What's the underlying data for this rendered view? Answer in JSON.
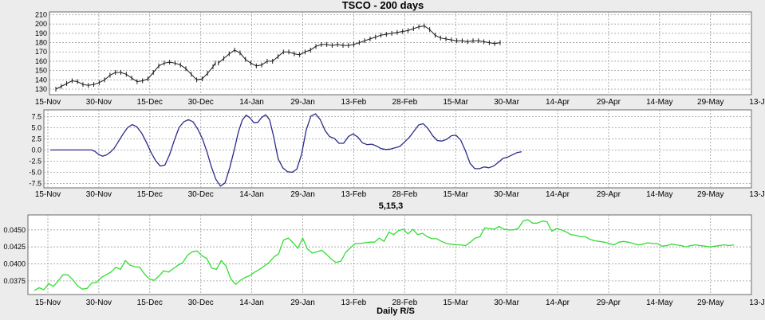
{
  "chart_data": [
    {
      "type": "line",
      "variant": "ohlc",
      "title": "TSCO - 200 days",
      "x_tick_labels": [
        "15-Nov",
        "30-Nov",
        "15-Dec",
        "30-Dec",
        "14-Jan",
        "29-Jan",
        "13-Feb",
        "28-Feb",
        "15-Mar",
        "30-Mar",
        "14-Apr",
        "29-Apr",
        "14-May",
        "29-May",
        "13-Jun"
      ],
      "y_ticks": [
        130,
        140,
        150,
        160,
        170,
        180,
        190,
        200,
        210
      ],
      "ylim": [
        124,
        213
      ],
      "grid": true,
      "series": [
        {
          "x": [
            0,
            7,
            14,
            21,
            28,
            35,
            42,
            49,
            56,
            63,
            70,
            77,
            84,
            91,
            98,
            105,
            112,
            119,
            126,
            133,
            140,
            147,
            154,
            161,
            168,
            175,
            182,
            189,
            196,
            203,
            206
          ],
          "values": [
            130,
            133,
            136,
            139,
            138,
            135,
            134,
            135,
            137,
            140,
            145,
            148,
            148,
            146,
            142,
            138,
            139,
            141,
            148,
            155,
            158,
            159,
            158,
            156,
            152,
            146,
            140,
            141,
            147,
            154,
            158
          ]
        },
        {
          "x": [
            210,
            217,
            224,
            231,
            238,
            245,
            252,
            259,
            266,
            273,
            280,
            287,
            294,
            301,
            308,
            315,
            322,
            329,
            336,
            343,
            350,
            357,
            364,
            371,
            378,
            385,
            392,
            399,
            406,
            413,
            420,
            427,
            434,
            441,
            448,
            455,
            462,
            469,
            476,
            483,
            490,
            497,
            504,
            511,
            518,
            525,
            532,
            539,
            546,
            553,
            560,
            567,
            574
          ],
          "values": [
            158,
            163,
            168,
            172,
            169,
            162,
            158,
            155,
            156,
            160,
            160,
            165,
            170,
            170,
            168,
            167,
            170,
            172,
            176,
            178,
            178,
            177,
            178,
            177,
            177,
            178,
            180,
            182,
            184,
            186,
            188,
            189,
            190,
            191,
            192,
            193,
            195,
            197,
            198,
            194,
            188,
            185,
            184,
            183,
            182,
            182,
            181,
            182,
            182,
            181,
            180,
            179,
            180
          ]
        }
      ]
    },
    {
      "type": "line",
      "title": "5,15,3",
      "x_tick_labels": [
        "15-Nov",
        "30-Nov",
        "15-Dec",
        "30-Dec",
        "14-Jan",
        "29-Jan",
        "13-Feb",
        "28-Feb",
        "15-Mar",
        "30-Mar",
        "14-Apr",
        "29-Apr",
        "14-May",
        "29-May",
        "13-Jun"
      ],
      "y_ticks": [
        -7.5,
        -5.0,
        -2.5,
        0.0,
        2.5,
        5.0,
        7.5
      ],
      "y_tick_labels": [
        "-7.5",
        "-5.0",
        "-2.5",
        "0.0",
        "2.5",
        "5.0",
        "7.5"
      ],
      "ylim": [
        -8.5,
        9.0
      ],
      "grid": true,
      "series": [
        {
          "x": [
            0,
            53,
            57,
            62,
            67,
            72,
            77,
            82,
            87,
            93,
            99,
            105,
            111,
            117,
            123,
            129,
            135,
            141,
            147,
            153,
            159,
            165,
            171,
            177,
            183,
            189,
            195,
            201,
            206,
            212,
            218,
            224,
            230,
            236,
            241,
            246,
            251,
            256,
            261,
            266,
            271,
            276,
            281,
            286,
            292,
            298,
            304,
            310,
            316,
            322,
            328,
            334,
            340,
            346,
            352,
            358,
            364,
            370,
            376,
            382,
            388,
            394,
            400,
            406,
            412,
            418,
            424,
            430,
            436,
            442,
            448,
            454,
            460,
            466,
            472,
            478,
            484,
            490,
            496,
            502,
            508,
            514,
            520,
            526,
            532,
            538,
            544,
            550,
            556,
            562,
            568,
            574,
            580,
            586,
            592,
            598,
            604
          ],
          "values": [
            0,
            0,
            -0.3,
            -1.0,
            -1.4,
            -1.1,
            -0.5,
            0.4,
            1.8,
            3.5,
            5.0,
            5.7,
            5.2,
            3.8,
            1.8,
            -0.5,
            -2.4,
            -3.6,
            -3.4,
            -1.0,
            2.2,
            5.0,
            6.3,
            6.8,
            6.3,
            4.7,
            2.5,
            -0.5,
            -3.5,
            -6.5,
            -8.1,
            -7.4,
            -4.0,
            0.2,
            4.0,
            6.7,
            7.8,
            7.2,
            6.1,
            6.2,
            7.3,
            7.9,
            6.8,
            3.2,
            -2.0,
            -4.0,
            -4.9,
            -5.0,
            -4.3,
            -1.0,
            4.5,
            7.6,
            8.1,
            6.8,
            4.4,
            3.0,
            2.6,
            1.5,
            1.5,
            3.0,
            3.6,
            2.9,
            1.6,
            1.2,
            1.3,
            0.9,
            0.3,
            0.1,
            0.2,
            0.5,
            0.8,
            1.8,
            2.8,
            4.2,
            5.6,
            5.9,
            4.8,
            3.2,
            2.1,
            2.0,
            2.4,
            3.2,
            3.3,
            2.2,
            -0.2,
            -3.0,
            -4.2,
            -4.2,
            -3.8,
            -4.0,
            -3.6,
            -2.8,
            -1.9,
            -1.6,
            -1.1,
            -0.6,
            -0.4
          ]
        }
      ]
    },
    {
      "type": "line",
      "title": "Daily R/S",
      "x_tick_labels": [
        "15-Nov",
        "30-Nov",
        "15-Dec",
        "30-Dec",
        "14-Jan",
        "29-Jan",
        "13-Feb",
        "28-Feb",
        "15-Mar",
        "30-Mar",
        "14-Apr",
        "29-Apr",
        "14-May",
        "29-May",
        "13-Jun"
      ],
      "y_ticks": [
        0.0375,
        0.04,
        0.0425,
        0.045
      ],
      "y_tick_labels": [
        "0.0375",
        "0.0400",
        "0.0425",
        "0.0450"
      ],
      "ylim": [
        0.0355,
        0.0472
      ],
      "grid": true,
      "series": [
        {
          "x": [
            0,
            6,
            12,
            18,
            24,
            30,
            36,
            42,
            48,
            54,
            60,
            66,
            72,
            78,
            84,
            90,
            96,
            102,
            108,
            114,
            120,
            126,
            132,
            138,
            144,
            150,
            156,
            162,
            168,
            174,
            180,
            186,
            192,
            198,
            204,
            210,
            216,
            222,
            228,
            234,
            240,
            246,
            252,
            258,
            264,
            270,
            276,
            282,
            288,
            294,
            300,
            306,
            312,
            318,
            324,
            330,
            336,
            342,
            348,
            354,
            360,
            366,
            372,
            378,
            384,
            390,
            396,
            402,
            408,
            414,
            420,
            426,
            432,
            438,
            444,
            450,
            456,
            462,
            468,
            474,
            480,
            486,
            492,
            498,
            504,
            510,
            516,
            522,
            528,
            534,
            540,
            546,
            552,
            558,
            564,
            570,
            576,
            582,
            588,
            594,
            600,
            606,
            612,
            618,
            624,
            630,
            636,
            642,
            648,
            654,
            660,
            666,
            672,
            678,
            684,
            690,
            696,
            702,
            708,
            714,
            720,
            726,
            732,
            738,
            744,
            750,
            756,
            762,
            768,
            774,
            780,
            786,
            792,
            798,
            804,
            810,
            816,
            822,
            828,
            834,
            840,
            846,
            852,
            858,
            864,
            870,
            876
          ],
          "values": [
            0.0361,
            0.0365,
            0.0362,
            0.0371,
            0.0367,
            0.0375,
            0.0384,
            0.0384,
            0.0377,
            0.0368,
            0.0363,
            0.0364,
            0.0372,
            0.0373,
            0.038,
            0.0384,
            0.0388,
            0.0395,
            0.0392,
            0.0405,
            0.0398,
            0.0396,
            0.0395,
            0.0385,
            0.0378,
            0.0376,
            0.0382,
            0.039,
            0.0388,
            0.0393,
            0.0398,
            0.0402,
            0.0413,
            0.0418,
            0.0419,
            0.0412,
            0.0408,
            0.0394,
            0.0392,
            0.0405,
            0.0397,
            0.0378,
            0.037,
            0.0376,
            0.038,
            0.0383,
            0.0388,
            0.0392,
            0.0397,
            0.0402,
            0.041,
            0.0415,
            0.0435,
            0.0438,
            0.0431,
            0.0423,
            0.0438,
            0.0422,
            0.0416,
            0.0418,
            0.042,
            0.0414,
            0.0407,
            0.0402,
            0.0404,
            0.0417,
            0.0424,
            0.043,
            0.043,
            0.0431,
            0.0432,
            0.0432,
            0.0438,
            0.0433,
            0.0447,
            0.0443,
            0.0449,
            0.0451,
            0.0444,
            0.0451,
            0.0443,
            0.0445,
            0.044,
            0.0437,
            0.0437,
            0.0433,
            0.043,
            0.0429,
            0.0428,
            0.0428,
            0.0427,
            0.0432,
            0.0438,
            0.044,
            0.0453,
            0.0452,
            0.0451,
            0.0455,
            0.0451,
            0.045,
            0.045,
            0.0452,
            0.0463,
            0.0465,
            0.046,
            0.046,
            0.0463,
            0.0462,
            0.0448,
            0.0452,
            0.045,
            0.0447,
            0.0443,
            0.0442,
            0.044,
            0.044,
            0.0436,
            0.0434,
            0.0433,
            0.0432,
            0.043,
            0.0428,
            0.0432,
            0.0433,
            0.0432,
            0.043,
            0.0428,
            0.0429,
            0.0431,
            0.043,
            0.043,
            0.0426,
            0.0427,
            0.0429,
            0.0428,
            0.0427,
            0.0425,
            0.0427,
            0.0428,
            0.0427,
            0.0426,
            0.0425,
            0.0426,
            0.0427,
            0.0428,
            0.0427,
            0.0428
          ]
        }
      ]
    }
  ],
  "colors": {
    "price": "#1a1a1a",
    "oscillator": "#2b2b8a",
    "ratio": "#33dd33"
  }
}
